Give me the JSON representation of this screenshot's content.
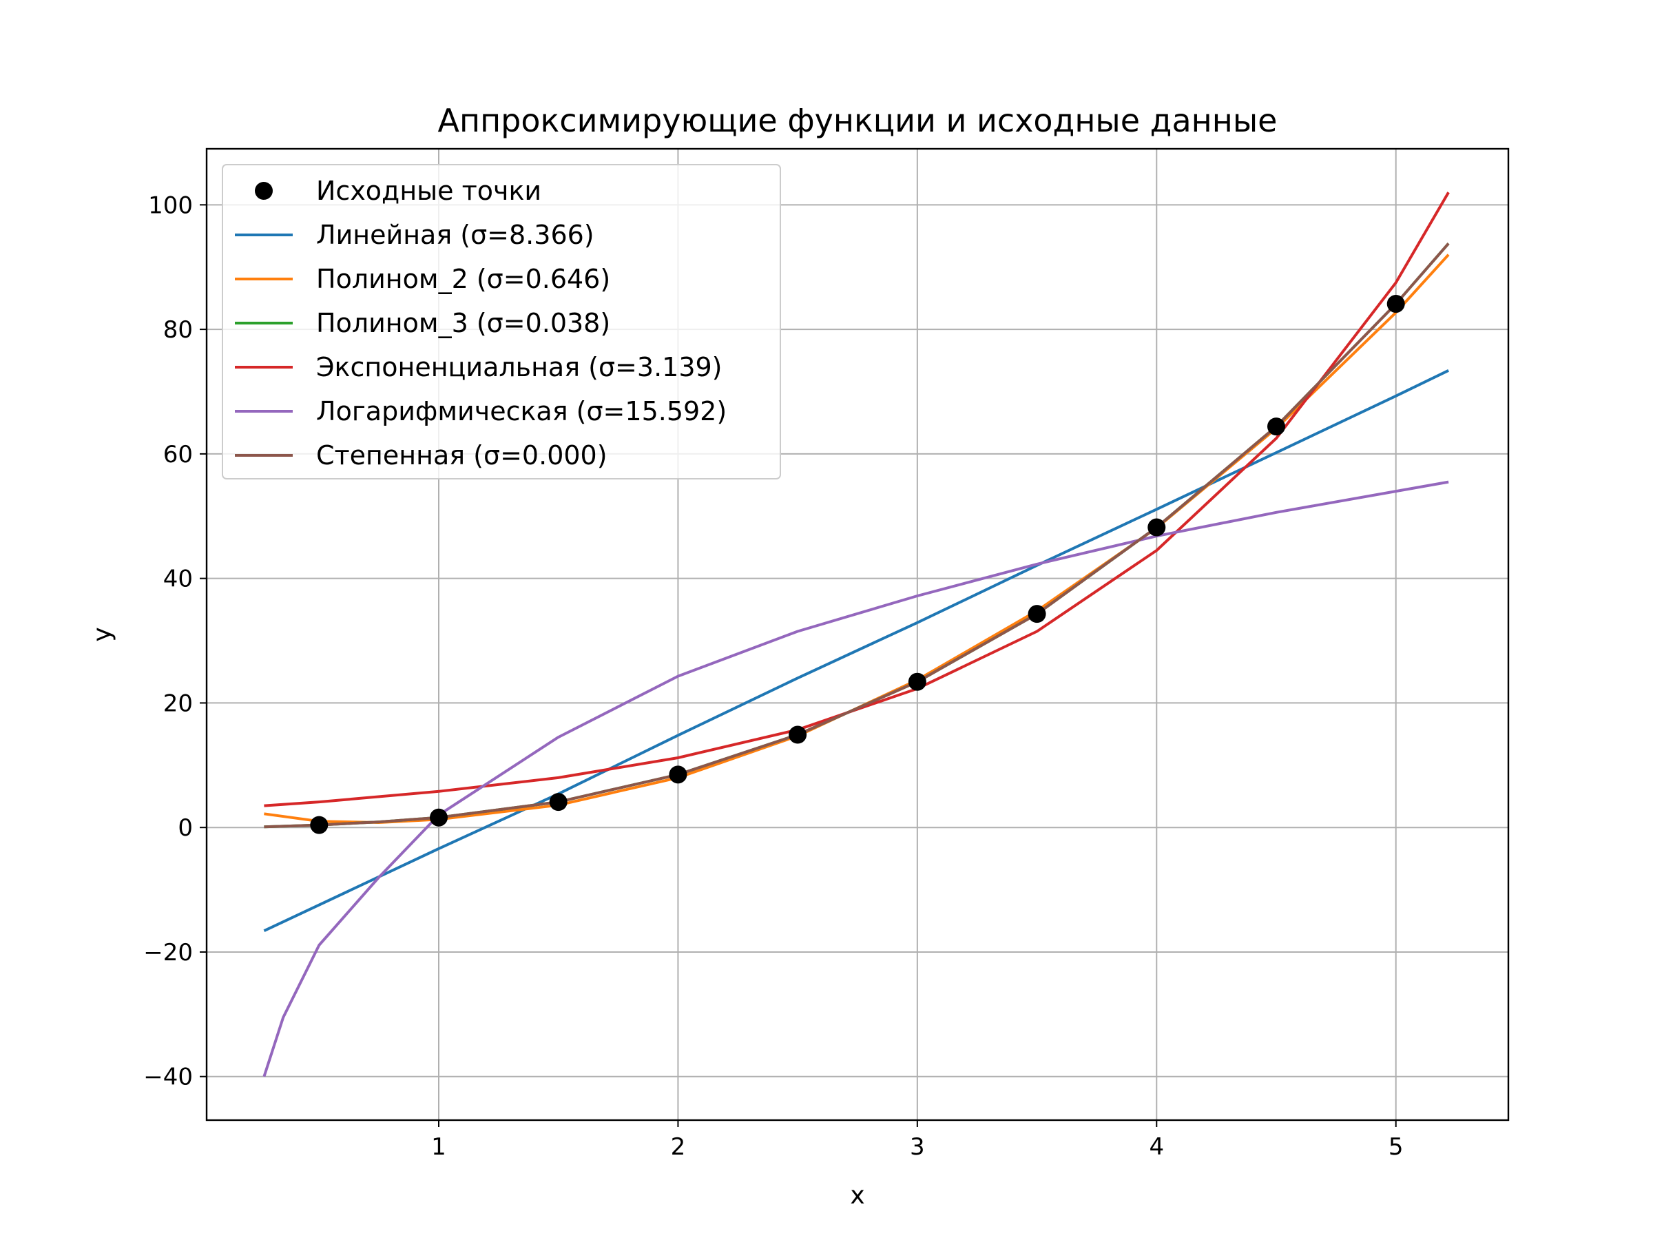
{
  "chart_data": {
    "type": "line",
    "title": "Аппроксимирующие функции и исходные данные",
    "xlabel": "x",
    "ylabel": "y",
    "xlim": [
      0.03,
      5.47
    ],
    "ylim": [
      -47,
      109
    ],
    "xticks": [
      1,
      2,
      3,
      4,
      5
    ],
    "yticks": [
      -40,
      -20,
      0,
      20,
      40,
      60,
      80,
      100
    ],
    "grid": true,
    "legend_position": "top-left",
    "points": {
      "name": "Исходные точки",
      "color": "#000000",
      "x": [
        0.5,
        1.0,
        1.5,
        2.0,
        2.5,
        3.0,
        3.5,
        4.0,
        4.5,
        5.0
      ],
      "y": [
        0.4,
        1.6,
        4.1,
        8.5,
        14.9,
        23.4,
        34.3,
        48.2,
        64.4,
        84.1
      ]
    },
    "series": [
      {
        "name": "Линейная (σ=8.366)",
        "color": "#1f77b4",
        "x": [
          0.27,
          1.0,
          1.5,
          2.0,
          2.5,
          3.0,
          3.5,
          4.0,
          4.5,
          5.0,
          5.22
        ],
        "y": [
          -16.6,
          -3.4,
          5.4,
          14.8,
          24.0,
          32.9,
          42.1,
          51.1,
          60.2,
          69.3,
          73.4
        ]
      },
      {
        "name": "Полином_2 (σ=0.646)",
        "color": "#ff7f0e",
        "x": [
          0.27,
          0.5,
          0.75,
          1.0,
          1.5,
          2.0,
          2.5,
          3.0,
          3.5,
          4.0,
          4.5,
          5.0,
          5.22
        ],
        "y": [
          2.2,
          1.0,
          0.8,
          1.3,
          3.6,
          8.0,
          14.7,
          23.7,
          34.8,
          48.1,
          64.1,
          82.7,
          92.0
        ]
      },
      {
        "name": "Полином_3 (σ=0.038)",
        "color": "#2ca02c",
        "x": [
          0.27,
          0.5,
          0.75,
          1.0,
          1.5,
          2.0,
          2.5,
          3.0,
          3.5,
          4.0,
          4.5,
          5.0,
          5.22
        ],
        "y": [
          0.1,
          0.4,
          0.9,
          1.6,
          4.1,
          8.5,
          14.9,
          23.4,
          34.3,
          48.2,
          64.4,
          84.1,
          93.8
        ]
      },
      {
        "name": "Экспоненциальная (σ=3.139)",
        "color": "#d62728",
        "x": [
          0.27,
          0.5,
          1.0,
          1.5,
          2.0,
          2.5,
          3.0,
          3.5,
          4.0,
          4.5,
          5.0,
          5.22
        ],
        "y": [
          3.5,
          4.1,
          5.8,
          8.0,
          11.2,
          15.7,
          22.3,
          31.5,
          44.5,
          62.5,
          87.5,
          102.0
        ]
      },
      {
        "name": "Логарифмическая (σ=15.592)",
        "color": "#9467bd",
        "x": [
          0.27,
          0.35,
          0.5,
          0.75,
          1.0,
          1.5,
          2.0,
          2.5,
          3.0,
          3.5,
          4.0,
          4.5,
          5.0,
          5.22
        ],
        "y": [
          -40.0,
          -30.5,
          -18.9,
          -8.0,
          2.0,
          14.5,
          24.3,
          31.5,
          37.2,
          42.3,
          46.8,
          50.6,
          54.0,
          55.5
        ]
      },
      {
        "name": "Степенная (σ=0.000)",
        "color": "#8c564b",
        "x": [
          0.27,
          0.5,
          0.75,
          1.0,
          1.5,
          2.0,
          2.5,
          3.0,
          3.5,
          4.0,
          4.5,
          5.0,
          5.22
        ],
        "y": [
          0.1,
          0.4,
          0.9,
          1.6,
          4.1,
          8.5,
          14.9,
          23.4,
          34.3,
          48.2,
          64.4,
          84.1,
          93.8
        ]
      }
    ]
  }
}
